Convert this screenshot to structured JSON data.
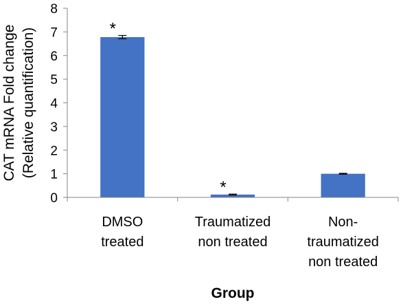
{
  "chart_data": {
    "type": "bar",
    "title": "",
    "xlabel": "Group",
    "ylabel_lines": [
      "CAT mRNA Fold change",
      "(Relative quantification)"
    ],
    "categories": [
      [
        "DMSO",
        "treated"
      ],
      [
        "Traumatized",
        "non treated"
      ],
      [
        "Non-",
        "traumatized",
        "non treated"
      ]
    ],
    "values": [
      6.78,
      0.12,
      1.0
    ],
    "errors": [
      0.07,
      0.02,
      0.02
    ],
    "annotations": [
      "*",
      "*",
      ""
    ],
    "ylim": [
      0,
      8
    ],
    "yticks": [
      0,
      1,
      2,
      3,
      4,
      5,
      6,
      7,
      8
    ],
    "grid": false,
    "legend": "none",
    "bar_color": "#4472C4"
  }
}
